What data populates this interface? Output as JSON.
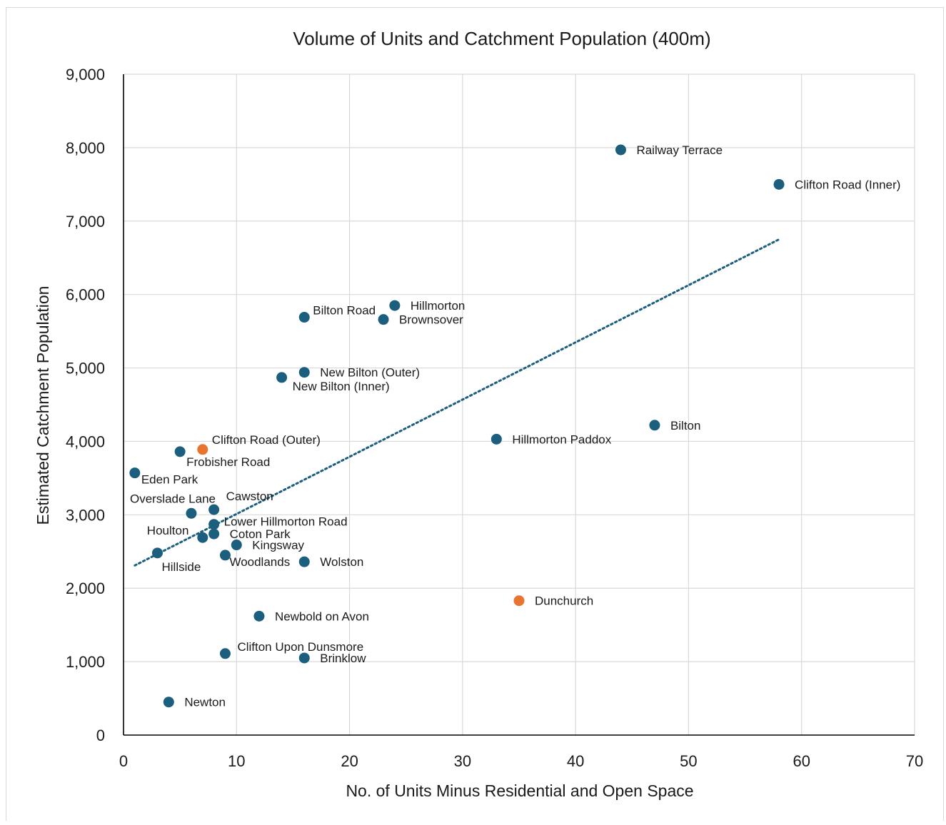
{
  "chart_data": {
    "type": "scatter",
    "title": "Volume of Units and Catchment Population (400m)",
    "xlabel": "No. of Units Minus Residential and Open Space",
    "ylabel": "Estimated Catchment Population",
    "xlim": [
      0,
      70
    ],
    "ylim": [
      0,
      9000
    ],
    "x_ticks": [
      0,
      10,
      20,
      30,
      40,
      50,
      60,
      70
    ],
    "y_ticks": [
      0,
      1000,
      2000,
      3000,
      4000,
      5000,
      6000,
      7000,
      8000,
      9000
    ],
    "x_tick_labels": [
      "0",
      "10",
      "20",
      "30",
      "40",
      "50",
      "60",
      "70"
    ],
    "y_tick_labels": [
      "0",
      "1,000",
      "2,000",
      "3,000",
      "4,000",
      "5,000",
      "6,000",
      "7,000",
      "8,000",
      "9,000"
    ],
    "grid": true,
    "colors": {
      "primary": "#1b5e7e",
      "highlight": "#e8742f",
      "trendline": "#1b5e7e"
    },
    "trendline": {
      "type": "linear",
      "style": "dotted",
      "x": [
        1,
        58
      ],
      "y": [
        2310,
        6750
      ]
    },
    "points": [
      {
        "label": "Railway Terrace",
        "x": 44,
        "y": 7970,
        "color": "#1b5e7e"
      },
      {
        "label": "Clifton Road (Inner)",
        "x": 58,
        "y": 7500,
        "color": "#1b5e7e"
      },
      {
        "label": "Hillmorton",
        "x": 24,
        "y": 5850,
        "color": "#1b5e7e"
      },
      {
        "label": "Bilton Road",
        "x": 16,
        "y": 5690,
        "color": "#1b5e7e"
      },
      {
        "label": "Brownsover",
        "x": 23,
        "y": 5660,
        "color": "#1b5e7e"
      },
      {
        "label": "New Bilton (Outer)",
        "x": 16,
        "y": 4940,
        "color": "#1b5e7e"
      },
      {
        "label": "New Bilton (Inner)",
        "x": 14,
        "y": 4870,
        "color": "#1b5e7e"
      },
      {
        "label": "Bilton",
        "x": 47,
        "y": 4220,
        "color": "#1b5e7e"
      },
      {
        "label": "Hillmorton Paddox",
        "x": 33,
        "y": 4030,
        "color": "#1b5e7e"
      },
      {
        "label": "Clifton Road (Outer)",
        "x": 7,
        "y": 3890,
        "color": "#e8742f"
      },
      {
        "label": "Frobisher Road",
        "x": 5,
        "y": 3860,
        "color": "#1b5e7e"
      },
      {
        "label": "Eden Park",
        "x": 1,
        "y": 3570,
        "color": "#1b5e7e"
      },
      {
        "label": "Cawston",
        "x": 8,
        "y": 3070,
        "color": "#1b5e7e"
      },
      {
        "label": "Overslade Lane",
        "x": 6,
        "y": 3020,
        "color": "#1b5e7e"
      },
      {
        "label": "Lower Hillmorton Road",
        "x": 8,
        "y": 2870,
        "color": "#1b5e7e"
      },
      {
        "label": "Coton Park",
        "x": 8,
        "y": 2740,
        "color": "#1b5e7e"
      },
      {
        "label": "Houlton",
        "x": 7,
        "y": 2690,
        "color": "#1b5e7e"
      },
      {
        "label": "Kingsway",
        "x": 10,
        "y": 2590,
        "color": "#1b5e7e"
      },
      {
        "label": "Hillside",
        "x": 3,
        "y": 2480,
        "color": "#1b5e7e"
      },
      {
        "label": "Woodlands",
        "x": 9,
        "y": 2450,
        "color": "#1b5e7e"
      },
      {
        "label": "Wolston",
        "x": 16,
        "y": 2360,
        "color": "#1b5e7e"
      },
      {
        "label": "Dunchurch",
        "x": 35,
        "y": 1830,
        "color": "#e8742f"
      },
      {
        "label": "Newbold on Avon",
        "x": 12,
        "y": 1620,
        "color": "#1b5e7e"
      },
      {
        "label": "Clifton Upon Dunsmore",
        "x": 9,
        "y": 1110,
        "color": "#1b5e7e"
      },
      {
        "label": "Brinklow",
        "x": 16,
        "y": 1050,
        "color": "#1b5e7e"
      },
      {
        "label": "Newton",
        "x": 4,
        "y": 450,
        "color": "#1b5e7e"
      }
    ]
  }
}
